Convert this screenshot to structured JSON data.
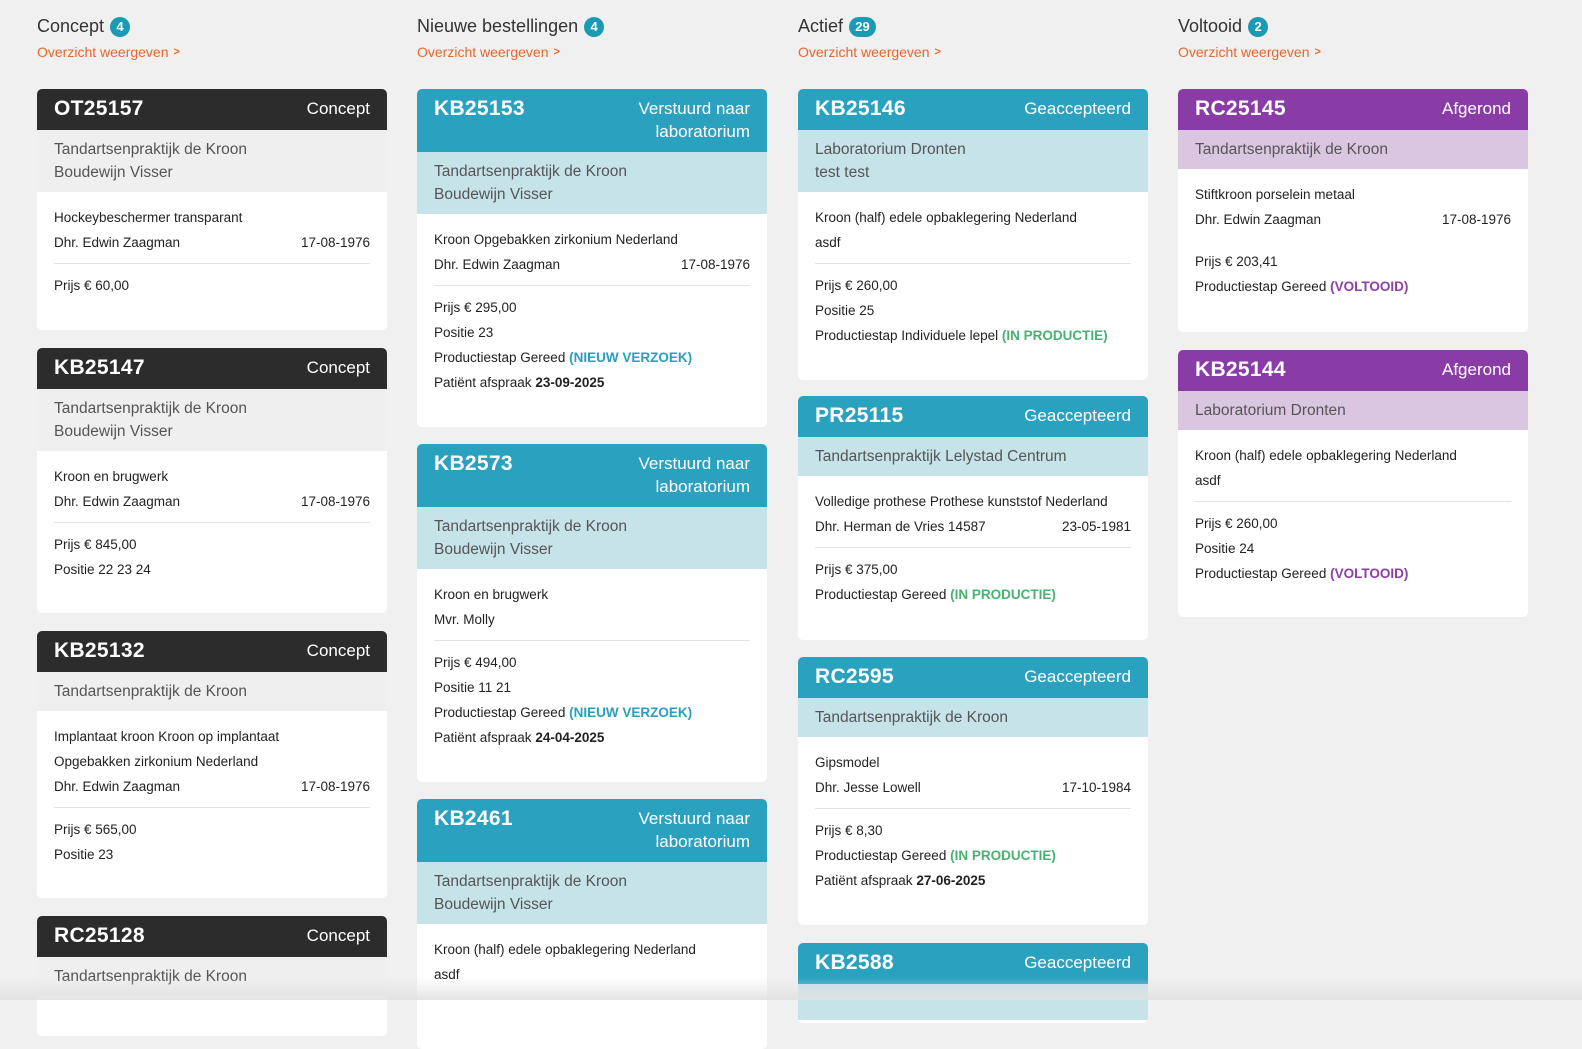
{
  "columns": [
    {
      "title": "Concept",
      "count": "4",
      "overview_label": "Overzicht weergeven",
      "cards": [
        {
          "code": "OT25157",
          "status": "Concept",
          "sub": [
            "Tandartsenpraktijk de Kroon",
            "Boudewijn Visser"
          ],
          "product": [
            "Hockeybeschermer transparant"
          ],
          "patient": "Dhr. Edwin Zaagman",
          "dob": "17-08-1976",
          "price": "Prijs € 60,00"
        },
        {
          "code": "KB25147",
          "status": "Concept",
          "sub": [
            "Tandartsenpraktijk de Kroon",
            "Boudewijn Visser"
          ],
          "product": [
            "Kroon en brugwerk"
          ],
          "patient": "Dhr. Edwin Zaagman",
          "dob": "17-08-1976",
          "price": "Prijs € 845,00",
          "position": "Positie 22 23 24"
        },
        {
          "code": "KB25132",
          "status": "Concept",
          "sub": [
            "Tandartsenpraktijk de Kroon"
          ],
          "product": [
            "Implantaat kroon Kroon op implantaat",
            "Opgebakken zirkonium Nederland"
          ],
          "patient": "Dhr. Edwin Zaagman",
          "dob": "17-08-1976",
          "price": "Prijs € 565,00",
          "position": "Positie 23"
        },
        {
          "code": "RC25128",
          "status": "Concept",
          "sub": [
            "Tandartsenpraktijk de Kroon"
          ]
        }
      ]
    },
    {
      "title": "Nieuwe bestellingen",
      "count": "4",
      "overview_label": "Overzicht weergeven",
      "cards": [
        {
          "code": "KB25153",
          "status": "Verstuurd naar laboratorium",
          "sub": [
            "Tandartsenpraktijk de Kroon",
            "Boudewijn Visser"
          ],
          "product": [
            "Kroon Opgebakken zirkonium Nederland"
          ],
          "patient": "Dhr. Edwin Zaagman",
          "dob": "17-08-1976",
          "price": "Prijs € 295,00",
          "position": "Positie 23",
          "step_label": "Productiestap Gereed",
          "step_status": "(NIEUW VERZOEK)",
          "appt_label": "Patiënt afspraak",
          "appt_date": "23-09-2025"
        },
        {
          "code": "KB2573",
          "status": "Verstuurd naar laboratorium",
          "sub": [
            "Tandartsenpraktijk de Kroon",
            "Boudewijn Visser"
          ],
          "product": [
            "Kroon en brugwerk"
          ],
          "patient": "Mvr. Molly",
          "dob": "",
          "price": "Prijs € 494,00",
          "position": "Positie 11 21",
          "step_label": "Productiestap Gereed",
          "step_status": "(NIEUW VERZOEK)",
          "appt_label": "Patiënt afspraak",
          "appt_date": "24-04-2025"
        },
        {
          "code": "KB2461",
          "status": "Verstuurd naar laboratorium",
          "sub": [
            "Tandartsenpraktijk de Kroon",
            "Boudewijn Visser"
          ],
          "product": [
            "Kroon (half) edele opbaklegering Nederland",
            "asdf"
          ]
        }
      ]
    },
    {
      "title": "Actief",
      "count": "29",
      "overview_label": "Overzicht weergeven",
      "cards": [
        {
          "code": "KB25146",
          "status": "Geaccepteerd",
          "sub": [
            "Laboratorium Dronten",
            "test test"
          ],
          "product": [
            "Kroon (half) edele opbaklegering Nederland",
            "asdf"
          ],
          "price": "Prijs € 260,00",
          "position": "Positie 25",
          "step_label": "Productiestap Individuele lepel",
          "step_status": "(IN PRODUCTIE)"
        },
        {
          "code": "PR25115",
          "status": "Geaccepteerd",
          "sub": [
            "Tandartsenpraktijk Lelystad Centrum"
          ],
          "product": [
            "Volledige prothese Prothese kunststof Nederland"
          ],
          "patient": "Dhr. Herman de Vries 14587",
          "dob": "23-05-1981",
          "price": "Prijs € 375,00",
          "step_label": "Productiestap Gereed",
          "step_status": "(IN PRODUCTIE)"
        },
        {
          "code": "RC2595",
          "status": "Geaccepteerd",
          "sub": [
            "Tandartsenpraktijk de Kroon"
          ],
          "product": [
            "Gipsmodel"
          ],
          "patient": "Dhr. Jesse Lowell",
          "dob": "17-10-1984",
          "price": "Prijs € 8,30",
          "step_label": "Productiestap Gereed",
          "step_status": "(IN PRODUCTIE)",
          "appt_label": "Patiënt afspraak",
          "appt_date": "27-06-2025"
        },
        {
          "code": "KB2588",
          "status": "Geaccepteerd"
        }
      ]
    },
    {
      "title": "Voltooid",
      "count": "2",
      "overview_label": "Overzicht weergeven",
      "cards": [
        {
          "code": "RC25145",
          "status": "Afgerond",
          "sub": [
            "Tandartsenpraktijk de Kroon"
          ],
          "product": [
            "Stiftkroon porselein metaal"
          ],
          "patient": "Dhr. Edwin Zaagman",
          "dob": "17-08-1976",
          "price": "Prijs € 203,41",
          "step_label": "Productiestap Gereed",
          "step_status": "(VOLTOOID)"
        },
        {
          "code": "KB25144",
          "status": "Afgerond",
          "sub": [
            "Laboratorium Dronten"
          ],
          "product": [
            "Kroon (half) edele opbaklegering Nederland",
            "asdf"
          ],
          "price": "Prijs € 260,00",
          "position": "Positie 24",
          "step_label": "Productiestap Gereed",
          "step_status": "(VOLTOOID)"
        }
      ]
    }
  ],
  "colors": {
    "concept": "#2c2c2c",
    "blue": "#2ba1c0",
    "purple": "#8a3ca6",
    "badge": "#1a9bb5",
    "link": "#e8672a"
  }
}
